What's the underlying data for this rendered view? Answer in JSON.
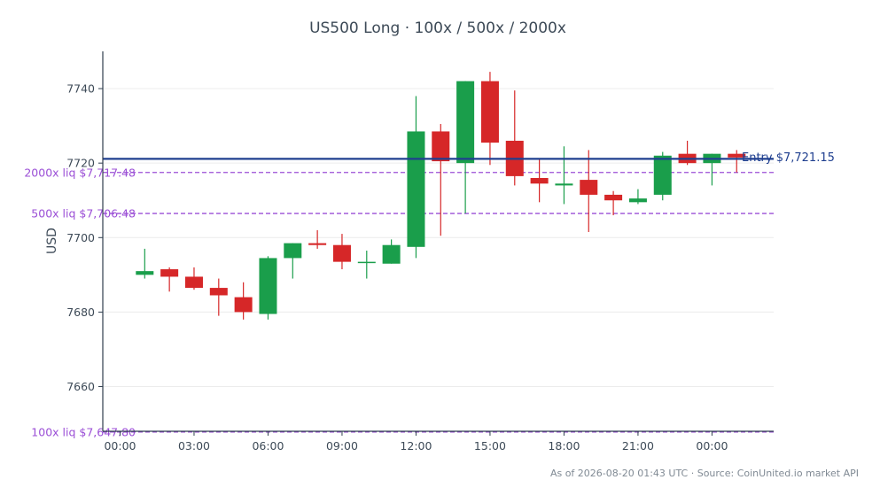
{
  "chart_data": {
    "type": "candlestick",
    "title": "US500 Long · 100x / 500x / 2000x",
    "xlabel": "",
    "ylabel": "USD",
    "ylim": [
      7648,
      7750
    ],
    "xlim": [
      -0.7,
      26.5
    ],
    "x_ticks": [
      {
        "x": 0,
        "label": "00:00"
      },
      {
        "x": 3,
        "label": "03:00"
      },
      {
        "x": 6,
        "label": "06:00"
      },
      {
        "x": 9,
        "label": "09:00"
      },
      {
        "x": 12,
        "label": "12:00"
      },
      {
        "x": 15,
        "label": "15:00"
      },
      {
        "x": 18,
        "label": "18:00"
      },
      {
        "x": 21,
        "label": "21:00"
      },
      {
        "x": 24,
        "label": "00:00"
      }
    ],
    "y_ticks": [
      7660,
      7680,
      7700,
      7720,
      7740
    ],
    "grid": true,
    "candles": [
      {
        "x": 1,
        "open": 7690.0,
        "high": 7697.0,
        "low": 7689.0,
        "close": 7691.0
      },
      {
        "x": 2,
        "open": 7691.5,
        "high": 7692.0,
        "low": 7685.5,
        "close": 7689.5
      },
      {
        "x": 3,
        "open": 7689.5,
        "high": 7692.0,
        "low": 7686.0,
        "close": 7686.5
      },
      {
        "x": 4,
        "open": 7686.5,
        "high": 7689.0,
        "low": 7679.0,
        "close": 7684.5
      },
      {
        "x": 5,
        "open": 7684.0,
        "high": 7688.0,
        "low": 7678.0,
        "close": 7680.0
      },
      {
        "x": 6,
        "open": 7679.5,
        "high": 7695.0,
        "low": 7678.0,
        "close": 7694.5
      },
      {
        "x": 7,
        "open": 7694.5,
        "high": 7698.5,
        "low": 7689.0,
        "close": 7698.5
      },
      {
        "x": 8,
        "open": 7698.5,
        "high": 7702.0,
        "low": 7697.0,
        "close": 7698.0
      },
      {
        "x": 9,
        "open": 7698.0,
        "high": 7701.0,
        "low": 7691.5,
        "close": 7693.5
      },
      {
        "x": 10,
        "open": 7693.5,
        "high": 7696.5,
        "low": 7689.0,
        "close": 7693.5
      },
      {
        "x": 11,
        "open": 7693.0,
        "high": 7699.5,
        "low": 7693.0,
        "close": 7698.0
      },
      {
        "x": 12,
        "open": 7697.5,
        "high": 7738.0,
        "low": 7694.5,
        "close": 7728.5
      },
      {
        "x": 13,
        "open": 7728.5,
        "high": 7730.5,
        "low": 7700.5,
        "close": 7720.5
      },
      {
        "x": 14,
        "open": 7720.0,
        "high": 7742.0,
        "low": 7706.5,
        "close": 7742.0
      },
      {
        "x": 15,
        "open": 7742.0,
        "high": 7744.5,
        "low": 7719.5,
        "close": 7725.5
      },
      {
        "x": 16,
        "open": 7726.0,
        "high": 7739.5,
        "low": 7714.0,
        "close": 7716.5
      },
      {
        "x": 17,
        "open": 7716.0,
        "high": 7721.0,
        "low": 7709.5,
        "close": 7714.5
      },
      {
        "x": 18,
        "open": 7714.0,
        "high": 7724.5,
        "low": 7709.0,
        "close": 7714.5
      },
      {
        "x": 19,
        "open": 7715.5,
        "high": 7723.5,
        "low": 7701.5,
        "close": 7711.5
      },
      {
        "x": 20,
        "open": 7711.5,
        "high": 7712.5,
        "low": 7706.0,
        "close": 7710.0
      },
      {
        "x": 21,
        "open": 7709.5,
        "high": 7713.0,
        "low": 7709.0,
        "close": 7710.5
      },
      {
        "x": 22,
        "open": 7711.5,
        "high": 7723.0,
        "low": 7710.0,
        "close": 7722.0
      },
      {
        "x": 23,
        "open": 7722.5,
        "high": 7726.0,
        "low": 7719.5,
        "close": 7720.0
      },
      {
        "x": 24,
        "open": 7720.0,
        "high": 7722.5,
        "low": 7714.0,
        "close": 7722.5
      },
      {
        "x": 25,
        "open": 7722.5,
        "high": 7723.5,
        "low": 7717.5,
        "close": 7721.5
      }
    ],
    "up_color": "#1a9e4b",
    "down_color": "#d62728",
    "entry": {
      "value": 7721.15,
      "label": "Entry $7,721.15",
      "color": "#1f3f8f"
    },
    "liquidation_levels": [
      {
        "value": 7717.48,
        "label": "2000x liq $7,717.48"
      },
      {
        "value": 7706.48,
        "label": "500x liq $7,706.48"
      },
      {
        "value": 7647.8,
        "label": "100x liq $7,647.80"
      }
    ],
    "liq_color": "#9b4fd6",
    "axis_color": "#2f3e4e",
    "text_color": "#3d4a57",
    "grid_color": "#ececec"
  },
  "footer": {
    "note": "As of 2026-08-20 01:43 UTC · Source: CoinUnited.io market API"
  }
}
